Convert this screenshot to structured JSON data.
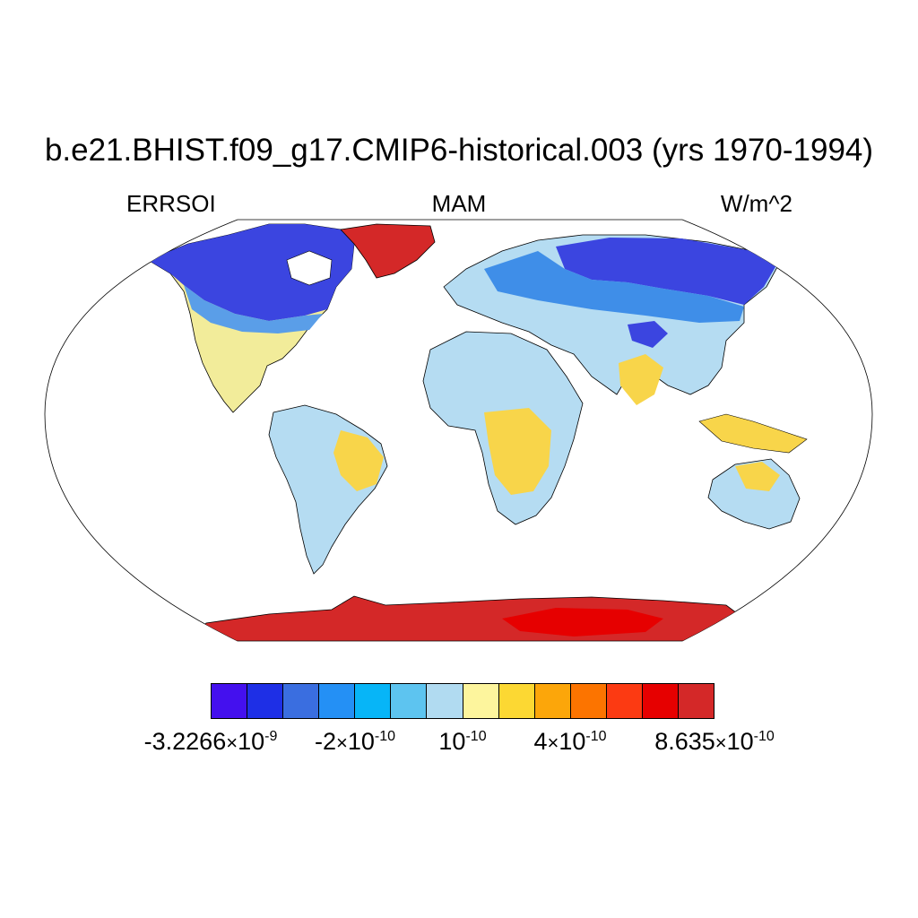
{
  "title": "b.e21.BHIST.f09_g17.CMIP6-historical.003 (yrs 1970-1994)",
  "left_label": "ERRSOI",
  "center_label": "MAM",
  "right_label": "W/m^2",
  "projection": "Robinson (global, land-only field)",
  "colorbar": {
    "colors": [
      "#4410ee",
      "#1e2fe6",
      "#3a6ee0",
      "#2490f5",
      "#07b5f7",
      "#5dc4f0",
      "#b1dbf1",
      "#fdf59d",
      "#fcd833",
      "#fca60a",
      "#fc7400",
      "#fc3a12",
      "#e60000",
      "#d42828"
    ],
    "labels": [
      {
        "mantissa": "-3.2266",
        "times": "×",
        "base": "10",
        "exp": "-9"
      },
      {
        "mantissa": "-2",
        "times": "×",
        "base": "10",
        "exp": "-10"
      },
      {
        "mantissa": "",
        "times": "",
        "base": "10",
        "exp": "-10"
      },
      {
        "mantissa": "4",
        "times": "×",
        "base": "10",
        "exp": "-10"
      },
      {
        "mantissa": "8.635",
        "times": "×",
        "base": "10",
        "exp": "-10"
      }
    ]
  }
}
